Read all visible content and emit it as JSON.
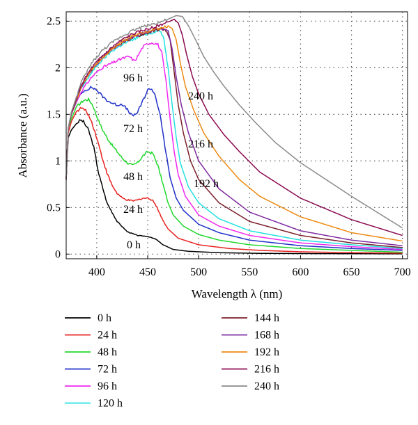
{
  "chart_data": {
    "type": "line",
    "xlabel": "Wavelength λ (nm)",
    "ylabel": "Absorbance (a.u.)",
    "xlim": [
      370,
      705
    ],
    "ylim": [
      -0.05,
      2.6
    ],
    "xticks": [
      "400",
      "450",
      "500",
      "550",
      "600",
      "650",
      "700"
    ],
    "yticks": [
      "0",
      "0.5",
      "1",
      "1.5",
      "2",
      "2.5"
    ],
    "grid": "dotted",
    "legend_position": "below",
    "series": [
      {
        "name": "0 h",
        "color": "#000000",
        "points": [
          [
            370,
            0.8
          ],
          [
            372,
            1.25
          ],
          [
            375,
            1.33
          ],
          [
            380,
            1.4
          ],
          [
            384,
            1.44
          ],
          [
            387,
            1.42
          ],
          [
            392,
            1.33
          ],
          [
            397,
            1.15
          ],
          [
            402,
            0.86
          ],
          [
            410,
            0.55
          ],
          [
            420,
            0.35
          ],
          [
            430,
            0.24
          ],
          [
            440,
            0.2
          ],
          [
            450,
            0.19
          ],
          [
            458,
            0.16
          ],
          [
            465,
            0.1
          ],
          [
            475,
            0.05
          ],
          [
            490,
            0.03
          ],
          [
            520,
            0.015
          ],
          [
            560,
            0.008
          ],
          [
            620,
            0.005
          ],
          [
            700,
            0.003
          ]
        ]
      },
      {
        "name": "24 h",
        "color": "#e8201e",
        "points": [
          [
            370,
            0.8
          ],
          [
            372,
            1.3
          ],
          [
            375,
            1.42
          ],
          [
            380,
            1.53
          ],
          [
            385,
            1.57
          ],
          [
            390,
            1.53
          ],
          [
            395,
            1.42
          ],
          [
            400,
            1.25
          ],
          [
            405,
            1.05
          ],
          [
            410,
            0.87
          ],
          [
            415,
            0.74
          ],
          [
            420,
            0.65
          ],
          [
            425,
            0.6
          ],
          [
            430,
            0.58
          ],
          [
            435,
            0.57
          ],
          [
            440,
            0.58
          ],
          [
            445,
            0.6
          ],
          [
            450,
            0.6
          ],
          [
            455,
            0.58
          ],
          [
            460,
            0.48
          ],
          [
            465,
            0.36
          ],
          [
            470,
            0.27
          ],
          [
            480,
            0.17
          ],
          [
            500,
            0.1
          ],
          [
            530,
            0.06
          ],
          [
            560,
            0.04
          ],
          [
            600,
            0.025
          ],
          [
            650,
            0.015
          ],
          [
            700,
            0.01
          ]
        ]
      },
      {
        "name": "48 h",
        "color": "#21d82c",
        "points": [
          [
            370,
            0.8
          ],
          [
            372,
            1.35
          ],
          [
            375,
            1.45
          ],
          [
            380,
            1.58
          ],
          [
            387,
            1.65
          ],
          [
            392,
            1.66
          ],
          [
            396,
            1.6
          ],
          [
            400,
            1.48
          ],
          [
            405,
            1.35
          ],
          [
            410,
            1.25
          ],
          [
            415,
            1.17
          ],
          [
            420,
            1.1
          ],
          [
            425,
            1.03
          ],
          [
            430,
            0.98
          ],
          [
            435,
            0.95
          ],
          [
            440,
            0.98
          ],
          [
            445,
            1.05
          ],
          [
            450,
            1.1
          ],
          [
            455,
            1.08
          ],
          [
            460,
            0.95
          ],
          [
            465,
            0.75
          ],
          [
            470,
            0.55
          ],
          [
            475,
            0.42
          ],
          [
            485,
            0.3
          ],
          [
            500,
            0.21
          ],
          [
            520,
            0.15
          ],
          [
            550,
            0.1
          ],
          [
            600,
            0.06
          ],
          [
            650,
            0.04
          ],
          [
            700,
            0.02
          ]
        ]
      },
      {
        "name": "72 h",
        "color": "#1f2fc8",
        "points": [
          [
            370,
            0.8
          ],
          [
            372,
            1.35
          ],
          [
            375,
            1.5
          ],
          [
            380,
            1.65
          ],
          [
            387,
            1.75
          ],
          [
            395,
            1.79
          ],
          [
            400,
            1.76
          ],
          [
            405,
            1.7
          ],
          [
            410,
            1.65
          ],
          [
            415,
            1.62
          ],
          [
            420,
            1.6
          ],
          [
            425,
            1.61
          ],
          [
            430,
            1.55
          ],
          [
            435,
            1.48
          ],
          [
            440,
            1.52
          ],
          [
            445,
            1.64
          ],
          [
            450,
            1.76
          ],
          [
            453,
            1.78
          ],
          [
            457,
            1.72
          ],
          [
            462,
            1.5
          ],
          [
            467,
            1.15
          ],
          [
            472,
            0.82
          ],
          [
            478,
            0.6
          ],
          [
            485,
            0.47
          ],
          [
            500,
            0.32
          ],
          [
            520,
            0.23
          ],
          [
            550,
            0.15
          ],
          [
            600,
            0.09
          ],
          [
            650,
            0.06
          ],
          [
            700,
            0.04
          ]
        ]
      },
      {
        "name": "96 h",
        "color": "#f028f0",
        "points": [
          [
            370,
            0.8
          ],
          [
            372,
            1.35
          ],
          [
            375,
            1.5
          ],
          [
            385,
            1.75
          ],
          [
            395,
            1.9
          ],
          [
            405,
            2.0
          ],
          [
            415,
            2.05
          ],
          [
            425,
            2.1
          ],
          [
            432,
            2.12
          ],
          [
            437,
            2.07
          ],
          [
            440,
            2.12
          ],
          [
            445,
            2.22
          ],
          [
            450,
            2.26
          ],
          [
            455,
            2.27
          ],
          [
            460,
            2.25
          ],
          [
            464,
            2.15
          ],
          [
            468,
            1.85
          ],
          [
            472,
            1.45
          ],
          [
            476,
            1.1
          ],
          [
            480,
            0.85
          ],
          [
            487,
            0.62
          ],
          [
            500,
            0.42
          ],
          [
            520,
            0.3
          ],
          [
            550,
            0.2
          ],
          [
            600,
            0.12
          ],
          [
            650,
            0.08
          ],
          [
            700,
            0.05
          ]
        ]
      },
      {
        "name": "120 h",
        "color": "#22e0e0",
        "points": [
          [
            370,
            0.8
          ],
          [
            372,
            1.35
          ],
          [
            375,
            1.5
          ],
          [
            385,
            1.78
          ],
          [
            395,
            1.95
          ],
          [
            405,
            2.08
          ],
          [
            415,
            2.18
          ],
          [
            425,
            2.25
          ],
          [
            435,
            2.3
          ],
          [
            445,
            2.35
          ],
          [
            455,
            2.38
          ],
          [
            462,
            2.4
          ],
          [
            466,
            2.3
          ],
          [
            470,
            2.0
          ],
          [
            474,
            1.6
          ],
          [
            478,
            1.25
          ],
          [
            482,
            0.98
          ],
          [
            490,
            0.72
          ],
          [
            500,
            0.55
          ],
          [
            520,
            0.38
          ],
          [
            550,
            0.25
          ],
          [
            600,
            0.15
          ],
          [
            650,
            0.1
          ],
          [
            700,
            0.06
          ]
        ]
      },
      {
        "name": "144 h",
        "color": "#7a1f2a",
        "points": [
          [
            370,
            0.8
          ],
          [
            372,
            1.35
          ],
          [
            375,
            1.5
          ],
          [
            385,
            1.8
          ],
          [
            395,
            1.98
          ],
          [
            405,
            2.1
          ],
          [
            415,
            2.2
          ],
          [
            425,
            2.27
          ],
          [
            435,
            2.32
          ],
          [
            445,
            2.36
          ],
          [
            455,
            2.39
          ],
          [
            463,
            2.42
          ],
          [
            468,
            2.4
          ],
          [
            472,
            2.3
          ],
          [
            476,
            1.95
          ],
          [
            480,
            1.6
          ],
          [
            485,
            1.3
          ],
          [
            492,
            1.0
          ],
          [
            500,
            0.8
          ],
          [
            520,
            0.55
          ],
          [
            550,
            0.35
          ],
          [
            600,
            0.2
          ],
          [
            650,
            0.12
          ],
          [
            700,
            0.07
          ]
        ]
      },
      {
        "name": "168 h",
        "color": "#7e2aa0",
        "points": [
          [
            370,
            0.8
          ],
          [
            372,
            1.35
          ],
          [
            375,
            1.5
          ],
          [
            385,
            1.8
          ],
          [
            395,
            1.98
          ],
          [
            405,
            2.1
          ],
          [
            415,
            2.2
          ],
          [
            425,
            2.28
          ],
          [
            435,
            2.33
          ],
          [
            445,
            2.37
          ],
          [
            455,
            2.4
          ],
          [
            465,
            2.42
          ],
          [
            470,
            2.4
          ],
          [
            474,
            2.2
          ],
          [
            478,
            1.9
          ],
          [
            483,
            1.6
          ],
          [
            490,
            1.3
          ],
          [
            500,
            1.0
          ],
          [
            520,
            0.7
          ],
          [
            550,
            0.45
          ],
          [
            600,
            0.25
          ],
          [
            650,
            0.15
          ],
          [
            700,
            0.09
          ]
        ]
      },
      {
        "name": "192 h",
        "color": "#ee8a10",
        "points": [
          [
            370,
            0.8
          ],
          [
            372,
            1.35
          ],
          [
            375,
            1.5
          ],
          [
            385,
            1.8
          ],
          [
            395,
            1.98
          ],
          [
            405,
            2.1
          ],
          [
            415,
            2.2
          ],
          [
            425,
            2.28
          ],
          [
            435,
            2.34
          ],
          [
            445,
            2.38
          ],
          [
            455,
            2.41
          ],
          [
            465,
            2.43
          ],
          [
            470,
            2.45
          ],
          [
            474,
            2.42
          ],
          [
            478,
            2.3
          ],
          [
            482,
            2.05
          ],
          [
            487,
            1.8
          ],
          [
            495,
            1.55
          ],
          [
            505,
            1.3
          ],
          [
            520,
            1.05
          ],
          [
            540,
            0.8
          ],
          [
            560,
            0.62
          ],
          [
            600,
            0.4
          ],
          [
            650,
            0.23
          ],
          [
            700,
            0.14
          ]
        ]
      },
      {
        "name": "216 h",
        "color": "#8a0a50",
        "points": [
          [
            370,
            0.8
          ],
          [
            372,
            1.35
          ],
          [
            375,
            1.5
          ],
          [
            385,
            1.82
          ],
          [
            395,
            2.0
          ],
          [
            405,
            2.12
          ],
          [
            415,
            2.22
          ],
          [
            425,
            2.3
          ],
          [
            435,
            2.36
          ],
          [
            445,
            2.4
          ],
          [
            455,
            2.43
          ],
          [
            465,
            2.47
          ],
          [
            472,
            2.5
          ],
          [
            476,
            2.52
          ],
          [
            480,
            2.48
          ],
          [
            484,
            2.35
          ],
          [
            488,
            2.15
          ],
          [
            494,
            1.9
          ],
          [
            500,
            1.72
          ],
          [
            510,
            1.5
          ],
          [
            525,
            1.28
          ],
          [
            540,
            1.1
          ],
          [
            560,
            0.88
          ],
          [
            600,
            0.6
          ],
          [
            650,
            0.37
          ],
          [
            700,
            0.2
          ]
        ]
      },
      {
        "name": "240 h",
        "color": "#8a8a8a",
        "points": [
          [
            370,
            0.8
          ],
          [
            372,
            1.35
          ],
          [
            375,
            1.52
          ],
          [
            385,
            1.85
          ],
          [
            395,
            2.05
          ],
          [
            405,
            2.18
          ],
          [
            415,
            2.27
          ],
          [
            425,
            2.34
          ],
          [
            435,
            2.4
          ],
          [
            445,
            2.44
          ],
          [
            455,
            2.47
          ],
          [
            465,
            2.5
          ],
          [
            472,
            2.53
          ],
          [
            478,
            2.56
          ],
          [
            484,
            2.55
          ],
          [
            490,
            2.45
          ],
          [
            497,
            2.3
          ],
          [
            505,
            2.12
          ],
          [
            515,
            1.95
          ],
          [
            525,
            1.8
          ],
          [
            540,
            1.6
          ],
          [
            555,
            1.42
          ],
          [
            575,
            1.2
          ],
          [
            600,
            0.98
          ],
          [
            625,
            0.8
          ],
          [
            650,
            0.62
          ],
          [
            675,
            0.45
          ],
          [
            700,
            0.28
          ]
        ]
      }
    ],
    "annotations": [
      {
        "text": "0 h",
        "x": 0.19
      },
      {
        "text": "24 h",
        "x": 0.6
      },
      {
        "text": "48 h",
        "x": 0.98
      },
      {
        "text": "72 h",
        "x": 1.47
      },
      {
        "text": "96 h",
        "x": 2.07
      },
      {
        "text": "240 h",
        "x": 1.85
      },
      {
        "text": "216 h",
        "x": 1.28
      },
      {
        "text": "192 h",
        "x": 0.78
      }
    ]
  }
}
